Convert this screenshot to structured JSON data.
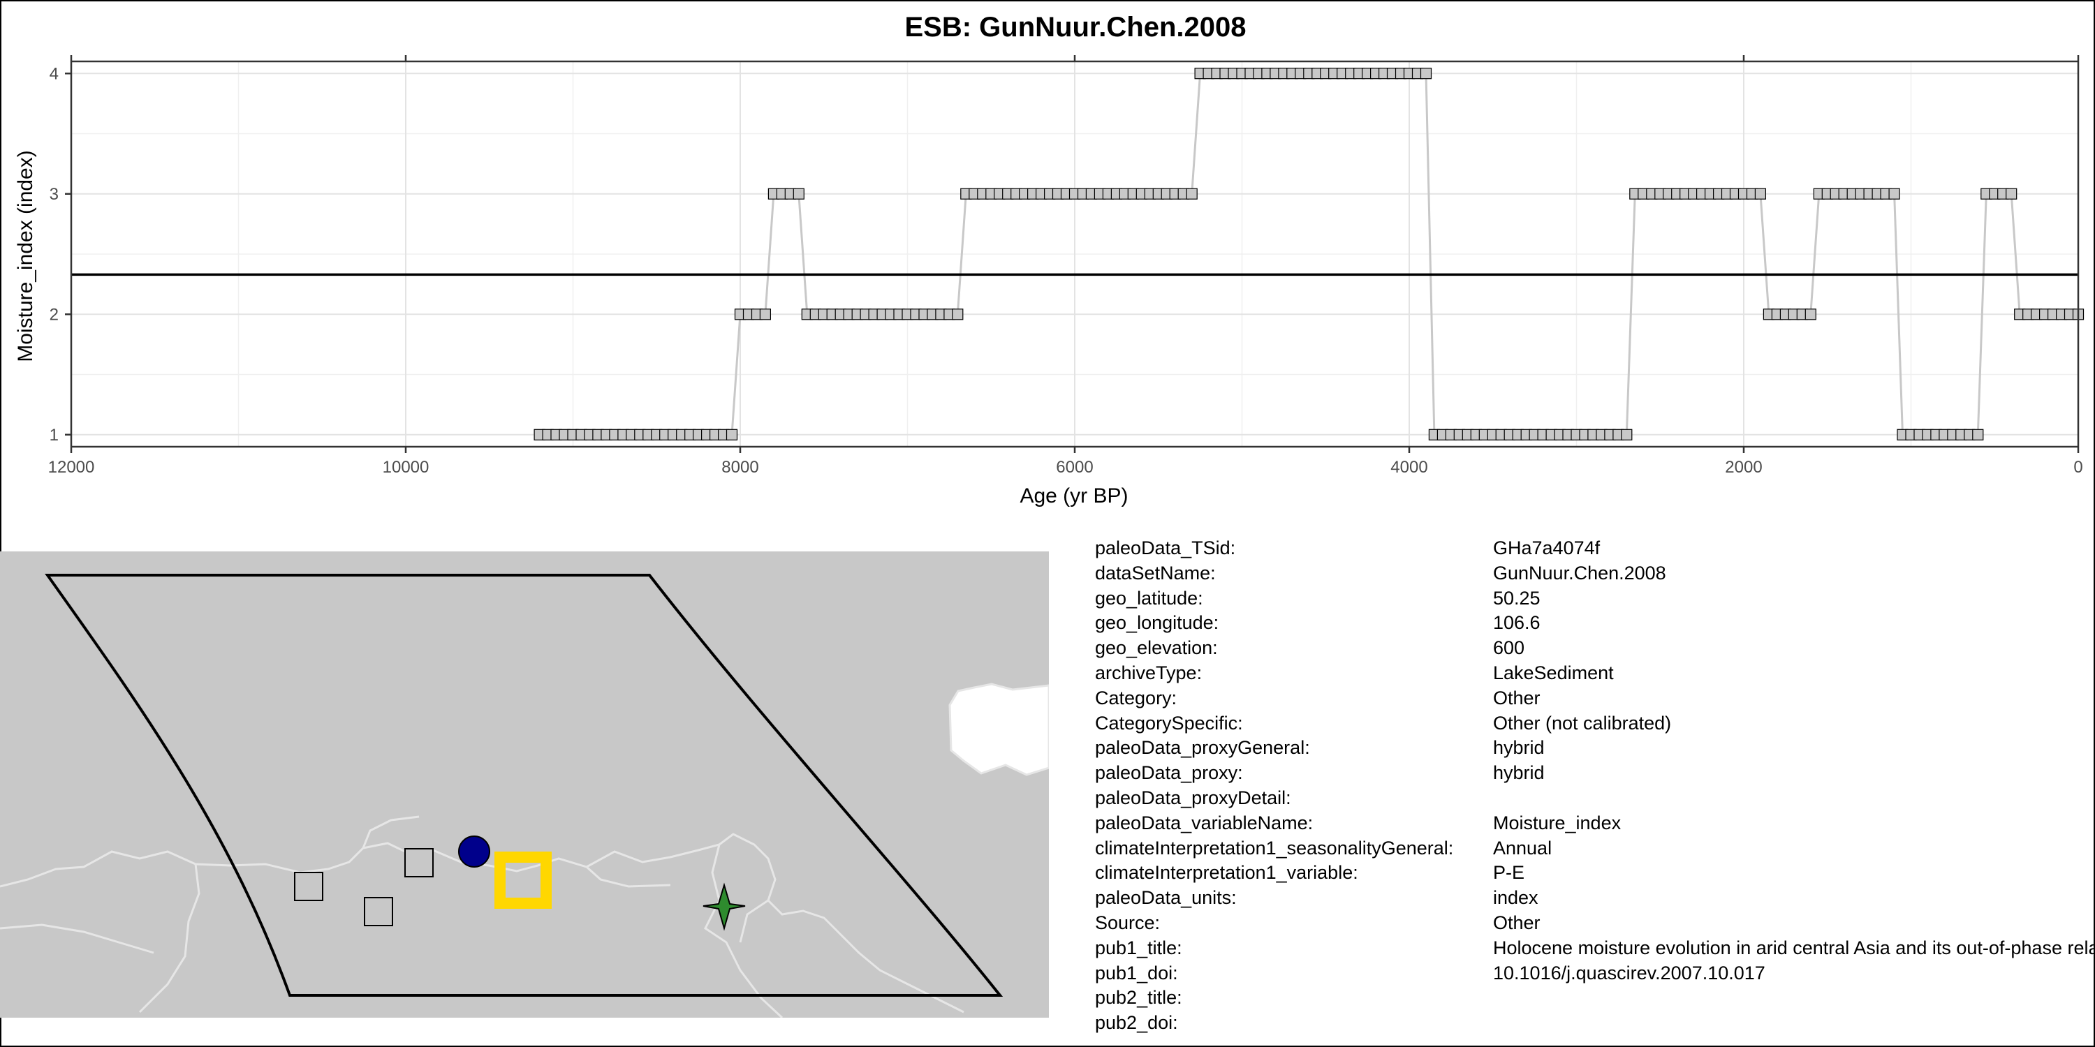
{
  "chart_data": {
    "type": "line",
    "title": "ESB: GunNuur.Chen.2008",
    "xlabel": "Age (yr BP)",
    "ylabel": "Moisture_index (index)",
    "xlim": [
      12000,
      0
    ],
    "ylim": [
      0.9,
      4.1
    ],
    "x_reversed": true,
    "x_ticks": [
      12000,
      10000,
      8000,
      6000,
      4000,
      2000,
      0
    ],
    "x_tick_labels": [
      "12000",
      "10000",
      "8000",
      "6000",
      "4000",
      "2000",
      "0"
    ],
    "y_ticks": [
      1,
      2,
      3,
      4
    ],
    "y_tick_labels": [
      "1",
      "2",
      "3",
      "4"
    ],
    "grid": true,
    "mean_line": 2.33,
    "series": [
      {
        "step_segments": [
          {
            "x_start": 9200,
            "x_end": 8050,
            "y": 1
          },
          {
            "x_start": 8000,
            "x_end": 7850,
            "y": 2
          },
          {
            "x_start": 7800,
            "x_end": 7650,
            "y": 3
          },
          {
            "x_start": 7600,
            "x_end": 6700,
            "y": 2
          },
          {
            "x_start": 6650,
            "x_end": 5300,
            "y": 3
          },
          {
            "x_start": 5250,
            "x_end": 3900,
            "y": 4
          },
          {
            "x_start": 3850,
            "x_end": 2700,
            "y": 1
          },
          {
            "x_start": 2650,
            "x_end": 1900,
            "y": 3
          },
          {
            "x_start": 1850,
            "x_end": 1600,
            "y": 2
          },
          {
            "x_start": 1550,
            "x_end": 1100,
            "y": 3
          },
          {
            "x_start": 1050,
            "x_end": 600,
            "y": 1
          },
          {
            "x_start": 550,
            "x_end": 400,
            "y": 3
          },
          {
            "x_start": 350,
            "x_end": 0,
            "y": 2
          }
        ],
        "point_spacing": 50,
        "line_color": "#c8c8c8",
        "marker_fill": "#c8c8c8",
        "marker_stroke": "#000000"
      }
    ]
  },
  "map": {
    "background_color": "#c8c8c8",
    "border_color": "#e6e6e6",
    "region_outline_color": "#000000",
    "markers": [
      {
        "kind": "square",
        "color": "#c8c8c8"
      },
      {
        "kind": "square",
        "color": "#c8c8c8"
      },
      {
        "kind": "square",
        "color": "#c8c8c8"
      },
      {
        "kind": "circle",
        "color": "#00008b"
      },
      {
        "kind": "highlight-square",
        "color": "#ffd700"
      },
      {
        "kind": "star",
        "color": "#2e8b2e"
      }
    ]
  },
  "metadata": [
    {
      "key": "paleoData_TSid:",
      "value": "GHa7a4074f"
    },
    {
      "key": "dataSetName:",
      "value": "GunNuur.Chen.2008"
    },
    {
      "key": "geo_latitude:",
      "value": "50.25"
    },
    {
      "key": "geo_longitude:",
      "value": "106.6"
    },
    {
      "key": "geo_elevation:",
      "value": "600"
    },
    {
      "key": "archiveType:",
      "value": "LakeSediment"
    },
    {
      "key": "Category:",
      "value": "Other"
    },
    {
      "key": "CategorySpecific:",
      "value": "Other (not calibrated)"
    },
    {
      "key": "paleoData_proxyGeneral:",
      "value": "hybrid"
    },
    {
      "key": "paleoData_proxy:",
      "value": "hybrid"
    },
    {
      "key": "paleoData_proxyDetail:",
      "value": ""
    },
    {
      "key": "paleoData_variableName:",
      "value": "Moisture_index"
    },
    {
      "key": "climateInterpretation1_seasonalityGeneral:",
      "value": "Annual"
    },
    {
      "key": "climateInterpretation1_variable:",
      "value": "P-E"
    },
    {
      "key": "paleoData_units:",
      "value": "index"
    },
    {
      "key": "Source:",
      "value": "Other"
    },
    {
      "key": "pub1_title:",
      "value": "Holocene moisture evolution in arid central Asia and its out-of-phase relationship with Asian monsoon history"
    },
    {
      "key": "pub1_doi:",
      "value": "10.1016/j.quascirev.2007.10.017"
    },
    {
      "key": "pub2_title:",
      "value": ""
    },
    {
      "key": "pub2_doi:",
      "value": ""
    }
  ]
}
